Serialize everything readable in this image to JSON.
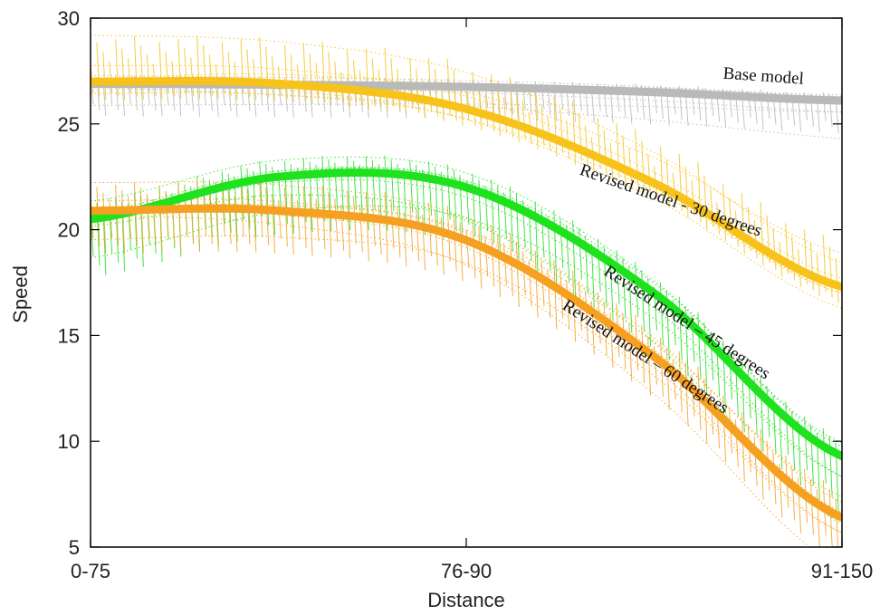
{
  "chart_data": {
    "type": "line",
    "title": "",
    "xlabel": "Distance",
    "ylabel": "Speed",
    "categories": [
      "0-75",
      "76-90",
      "91-150"
    ],
    "ylim": [
      5,
      30
    ],
    "yticks": [
      5,
      10,
      15,
      20,
      25,
      30
    ],
    "grid": false,
    "legend": "none",
    "series": [
      {
        "name": "Base model",
        "color": "#b9b9b9",
        "x": [
          0,
          0.25,
          0.5,
          0.75,
          1.0
        ],
        "y": [
          26.9,
          26.85,
          26.75,
          26.5,
          26.1
        ]
      },
      {
        "name": "Revised model - 30 degrees",
        "color": "#f7c21a",
        "x": [
          0,
          0.25,
          0.5,
          0.75,
          1.0
        ],
        "y": [
          27.0,
          26.9,
          25.7,
          22.2,
          17.3
        ]
      },
      {
        "name": "Revised model – 45  degrees",
        "color": "#1ee21e",
        "x": [
          0,
          0.25,
          0.5,
          0.75,
          1.0
        ],
        "y": [
          20.5,
          22.5,
          22.0,
          17.0,
          9.3
        ]
      },
      {
        "name": "Revised model – 60 degrees",
        "color": "#f5a020",
        "x": [
          0,
          0.25,
          0.5,
          0.75,
          1.0
        ],
        "y": [
          20.9,
          20.9,
          19.5,
          14.0,
          6.4
        ]
      }
    ]
  }
}
